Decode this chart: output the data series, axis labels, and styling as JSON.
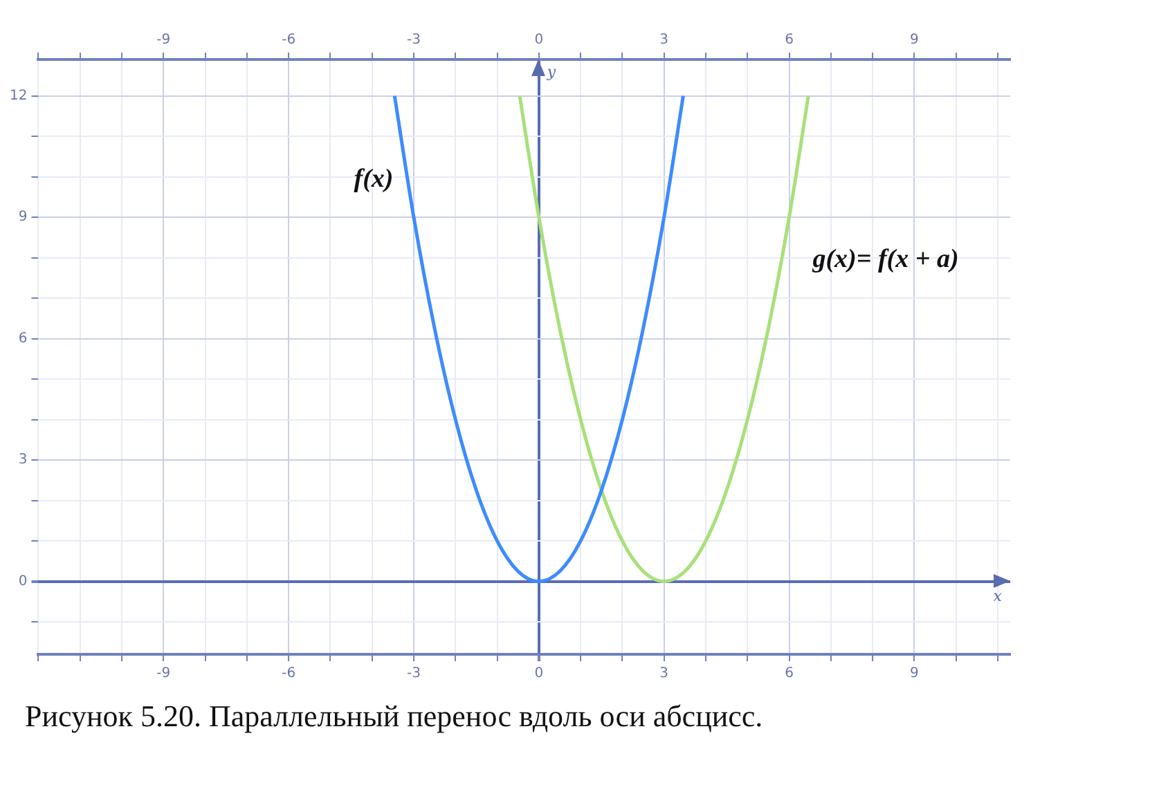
{
  "chart_data": {
    "type": "line",
    "xlabel": "x",
    "ylabel": "y",
    "xlim": [
      -12,
      11.3
    ],
    "ylim": [
      -1.8,
      12.9
    ],
    "xticks": [
      {
        "value": -12,
        "label": null
      },
      {
        "value": -11,
        "label": null
      },
      {
        "value": -10,
        "label": null
      },
      -9,
      {
        "value": -8,
        "label": null
      },
      {
        "value": -7,
        "label": null
      },
      -6,
      {
        "value": -5,
        "label": null
      },
      {
        "value": -4,
        "label": null
      },
      -3,
      {
        "value": -2,
        "label": null
      },
      {
        "value": -1,
        "label": null
      },
      0,
      {
        "value": 1,
        "label": null
      },
      {
        "value": 2,
        "label": null
      },
      3,
      {
        "value": 4,
        "label": null
      },
      {
        "value": 5,
        "label": null
      },
      6,
      {
        "value": 7,
        "label": null
      },
      {
        "value": 8,
        "label": null
      },
      9,
      {
        "value": 10,
        "label": null
      },
      {
        "value": 11,
        "label": null
      }
    ],
    "x2lim": [
      -12,
      11.3
    ],
    "x2ticks": [
      {
        "value": -12,
        "label": null
      },
      {
        "value": -11,
        "label": null
      },
      {
        "value": -10,
        "label": null
      },
      -9,
      {
        "value": -8,
        "label": null
      },
      {
        "value": -7,
        "label": null
      },
      -6,
      {
        "value": -5,
        "label": null
      },
      {
        "value": -4,
        "label": null
      },
      -3,
      {
        "value": -2,
        "label": null
      },
      {
        "value": -1,
        "label": null
      },
      0,
      {
        "value": 1,
        "label": null
      },
      {
        "value": 2,
        "label": null
      },
      3,
      {
        "value": 4,
        "label": null
      },
      {
        "value": 5,
        "label": null
      },
      6,
      {
        "value": 7,
        "label": null
      },
      {
        "value": 8,
        "label": null
      },
      9,
      {
        "value": 10,
        "label": null
      },
      {
        "value": 11,
        "label": null
      }
    ],
    "yticks": [
      {
        "value": -1,
        "label": null
      },
      0,
      {
        "value": 1,
        "label": null
      },
      {
        "value": 2,
        "label": null
      },
      3,
      {
        "value": 4,
        "label": null
      },
      {
        "value": 5,
        "label": null
      },
      6,
      {
        "value": 7,
        "label": null
      },
      {
        "value": 8,
        "label": null
      },
      9,
      {
        "value": 10,
        "label": null
      },
      {
        "value": 11,
        "label": null
      },
      12
    ],
    "grid": true,
    "marker": "none",
    "line_style": "solid",
    "legend": false,
    "series": [
      {
        "color": "#3d8bff",
        "x": [
          -3.46,
          -3,
          -2.5,
          -2,
          -1.5,
          -1,
          -0.5,
          0,
          0.5,
          1,
          1.5,
          2,
          2.5,
          3,
          3.46
        ],
        "values": [
          12,
          9,
          6.25,
          4,
          2.25,
          1,
          0.25,
          0,
          0.25,
          1,
          2.25,
          4,
          6.25,
          9,
          12
        ]
      },
      {
        "color": "#a8e07a",
        "x": [
          -0.46,
          0,
          0.5,
          1,
          1.5,
          2,
          2.5,
          3,
          3.5,
          4,
          4.5,
          5,
          5.5,
          6,
          6.46
        ],
        "values": [
          12,
          9,
          6.25,
          4,
          2.25,
          1,
          0.25,
          0,
          0.25,
          1,
          2.25,
          4,
          6.25,
          9,
          12
        ]
      }
    ],
    "annotations": [
      "f(x)",
      "g(x)= f(x + a)",
      "Рисунок 5.20. Параллельный перенос вдоль оси абсцисс."
    ]
  }
}
